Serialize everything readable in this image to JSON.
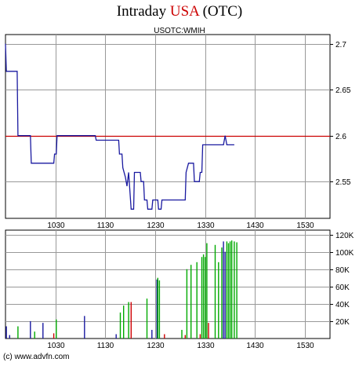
{
  "header": {
    "title_prefix": "Intraday",
    "title_accent": "USA",
    "title_suffix": "(OTC)",
    "symbol": "USOTC:WMIH",
    "source": "(c) www.advfn.com"
  },
  "colors": {
    "accent": "#cc0000",
    "price_line": "#1a1aa0",
    "reference_line": "#cc0000",
    "grid": "#999999",
    "volume_up": "#00aa00",
    "volume_down": "#cc0000",
    "volume_neutral": "#1a1aa0"
  },
  "chart_data": [
    {
      "type": "line",
      "name": "price",
      "x_unit": "minutes since 09:30",
      "xlim": [
        0,
        390
      ],
      "x_ticks": [
        {
          "value": 60,
          "label": "1030"
        },
        {
          "value": 120,
          "label": "1130"
        },
        {
          "value": 180,
          "label": "1230"
        },
        {
          "value": 240,
          "label": "1330"
        },
        {
          "value": 300,
          "label": "1430"
        },
        {
          "value": 360,
          "label": "1530"
        }
      ],
      "ylim": [
        2.51,
        2.71
      ],
      "y_ticks": [
        2.55,
        2.6,
        2.65,
        2.7
      ],
      "grid": true,
      "reference_value": 2.6,
      "points": [
        [
          0,
          2.7
        ],
        [
          1,
          2.67
        ],
        [
          14,
          2.67
        ],
        [
          15,
          2.6
        ],
        [
          30,
          2.6
        ],
        [
          31,
          2.57
        ],
        [
          58,
          2.57
        ],
        [
          59,
          2.58
        ],
        [
          61,
          2.58
        ],
        [
          62,
          2.6
        ],
        [
          108,
          2.6
        ],
        [
          109,
          2.595
        ],
        [
          136,
          2.595
        ],
        [
          137,
          2.58
        ],
        [
          140,
          2.58
        ],
        [
          141,
          2.565
        ],
        [
          144,
          2.555
        ],
        [
          146,
          2.545
        ],
        [
          148,
          2.56
        ],
        [
          151,
          2.52
        ],
        [
          154,
          2.52
        ],
        [
          155,
          2.56
        ],
        [
          162,
          2.56
        ],
        [
          163,
          2.55
        ],
        [
          166,
          2.55
        ],
        [
          167,
          2.53
        ],
        [
          170,
          2.53
        ],
        [
          171,
          2.52
        ],
        [
          176,
          2.52
        ],
        [
          177,
          2.53
        ],
        [
          183,
          2.53
        ],
        [
          184,
          2.52
        ],
        [
          187,
          2.52
        ],
        [
          188,
          2.53
        ],
        [
          216,
          2.53
        ],
        [
          217,
          2.56
        ],
        [
          220,
          2.57
        ],
        [
          226,
          2.57
        ],
        [
          227,
          2.55
        ],
        [
          233,
          2.55
        ],
        [
          234,
          2.56
        ],
        [
          236,
          2.56
        ],
        [
          237,
          2.59
        ],
        [
          262,
          2.59
        ],
        [
          264,
          2.6
        ],
        [
          266,
          2.59
        ],
        [
          275,
          2.59
        ]
      ]
    },
    {
      "type": "bar",
      "name": "volume",
      "x_unit": "minutes since 09:30",
      "xlim": [
        0,
        390
      ],
      "ylim": [
        0,
        125000
      ],
      "y_ticks": [
        {
          "value": 20000,
          "label": "20K"
        },
        {
          "value": 40000,
          "label": "40K"
        },
        {
          "value": 60000,
          "label": "60K"
        },
        {
          "value": 80000,
          "label": "80K"
        },
        {
          "value": 100000,
          "label": "100K"
        },
        {
          "value": 120000,
          "label": "120K"
        }
      ],
      "grid": true,
      "bars": [
        {
          "x": 1,
          "value": 14000,
          "dir": "neutral"
        },
        {
          "x": 5,
          "value": 4000,
          "dir": "neutral"
        },
        {
          "x": 15,
          "value": 14000,
          "dir": "up"
        },
        {
          "x": 30,
          "value": 20000,
          "dir": "neutral"
        },
        {
          "x": 35,
          "value": 8000,
          "dir": "up"
        },
        {
          "x": 45,
          "value": 18000,
          "dir": "neutral"
        },
        {
          "x": 58,
          "value": 6000,
          "dir": "down"
        },
        {
          "x": 61,
          "value": 22000,
          "dir": "up"
        },
        {
          "x": 95,
          "value": 26000,
          "dir": "neutral"
        },
        {
          "x": 133,
          "value": 5000,
          "dir": "neutral"
        },
        {
          "x": 138,
          "value": 30000,
          "dir": "up"
        },
        {
          "x": 142,
          "value": 38000,
          "dir": "up"
        },
        {
          "x": 148,
          "value": 42000,
          "dir": "up"
        },
        {
          "x": 151,
          "value": 42000,
          "dir": "down"
        },
        {
          "x": 170,
          "value": 46000,
          "dir": "up"
        },
        {
          "x": 176,
          "value": 10000,
          "dir": "neutral"
        },
        {
          "x": 182,
          "value": 68000,
          "dir": "neutral"
        },
        {
          "x": 183,
          "value": 70000,
          "dir": "up"
        },
        {
          "x": 185,
          "value": 67000,
          "dir": "up"
        },
        {
          "x": 191,
          "value": 5000,
          "dir": "down"
        },
        {
          "x": 212,
          "value": 10000,
          "dir": "up"
        },
        {
          "x": 216,
          "value": 4000,
          "dir": "down"
        },
        {
          "x": 218,
          "value": 80000,
          "dir": "up"
        },
        {
          "x": 223,
          "value": 85000,
          "dir": "up"
        },
        {
          "x": 230,
          "value": 88000,
          "dir": "up"
        },
        {
          "x": 234,
          "value": 5000,
          "dir": "down"
        },
        {
          "x": 236,
          "value": 94000,
          "dir": "up"
        },
        {
          "x": 238,
          "value": 97000,
          "dir": "up"
        },
        {
          "x": 240,
          "value": 94000,
          "dir": "up"
        },
        {
          "x": 242,
          "value": 110000,
          "dir": "up"
        },
        {
          "x": 244,
          "value": 18000,
          "dir": "down"
        },
        {
          "x": 252,
          "value": 108000,
          "dir": "up"
        },
        {
          "x": 256,
          "value": 88000,
          "dir": "up"
        },
        {
          "x": 260,
          "value": 105000,
          "dir": "up"
        },
        {
          "x": 262,
          "value": 112000,
          "dir": "neutral"
        },
        {
          "x": 264,
          "value": 100000,
          "dir": "neutral"
        },
        {
          "x": 266,
          "value": 112000,
          "dir": "up"
        },
        {
          "x": 268,
          "value": 110000,
          "dir": "up"
        },
        {
          "x": 270,
          "value": 112000,
          "dir": "up"
        },
        {
          "x": 272,
          "value": 113000,
          "dir": "up"
        },
        {
          "x": 275,
          "value": 112000,
          "dir": "up"
        },
        {
          "x": 278,
          "value": 111000,
          "dir": "up"
        }
      ]
    }
  ]
}
